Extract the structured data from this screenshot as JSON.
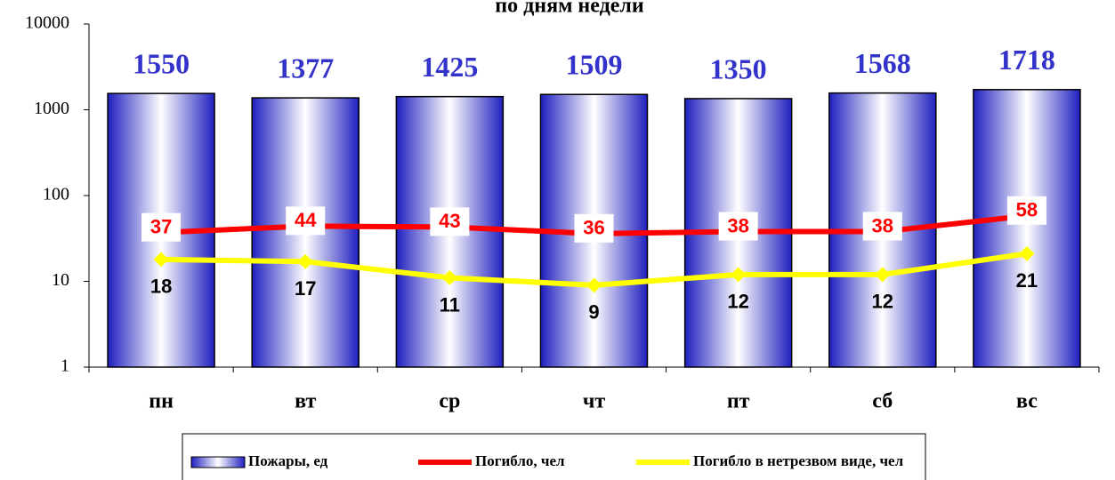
{
  "chart_data": {
    "type": "bar",
    "title": "по дням недели",
    "categories": [
      "пн",
      "вт",
      "ср",
      "чт",
      "пт",
      "сб",
      "вс"
    ],
    "series": [
      {
        "name": "Пожары, ед",
        "type": "bar",
        "color": "#3333cc",
        "values": [
          1550,
          1377,
          1425,
          1509,
          1350,
          1568,
          1718
        ]
      },
      {
        "name": "Погибло, чел",
        "type": "line",
        "color": "#ff0000",
        "values": [
          37,
          44,
          43,
          36,
          38,
          38,
          58
        ]
      },
      {
        "name": "Погибло в нетрезвом виде, чел",
        "type": "line",
        "color": "#ffff00",
        "values": [
          18,
          17,
          11,
          9,
          12,
          12,
          21
        ]
      }
    ],
    "log_scale": true,
    "ylim": [
      1,
      10000
    ],
    "yticks": [
      1,
      10,
      100,
      1000,
      10000
    ],
    "legend": "bottom"
  }
}
